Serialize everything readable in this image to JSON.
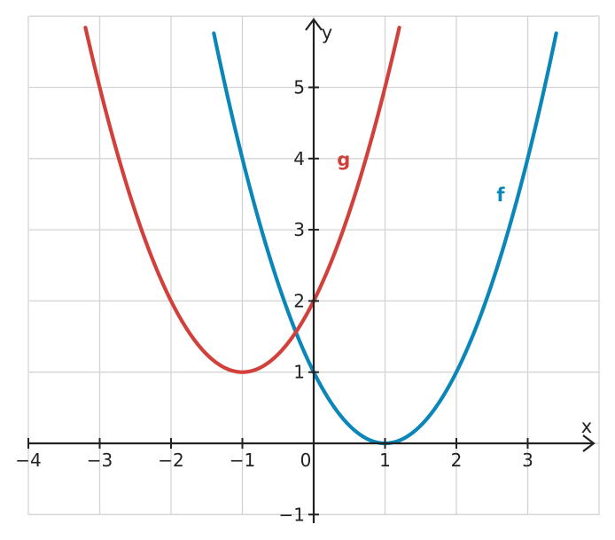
{
  "chart_data": {
    "type": "line",
    "title": "",
    "xlabel": "x",
    "ylabel": "y",
    "xlim": [
      -4,
      4
    ],
    "ylim": [
      -1,
      6
    ],
    "grid": true,
    "x_ticks": [
      -4,
      -3,
      -2,
      -1,
      0,
      1,
      2,
      3
    ],
    "x_tick_labels": [
      "−4",
      "−3",
      "−2",
      "−1",
      "0",
      "1",
      "2",
      "3"
    ],
    "y_ticks": [
      -1,
      1,
      2,
      3,
      4,
      5
    ],
    "y_tick_labels": [
      "−1",
      "1",
      "2",
      "3",
      "4",
      "5"
    ],
    "series": [
      {
        "name": "f",
        "color": "#0a86b8",
        "x": [
          -1.4,
          -1.0,
          -0.5,
          0.0,
          0.5,
          1.0,
          1.5,
          2.0,
          2.5,
          3.0,
          3.4
        ],
        "y": [
          5.76,
          4.0,
          2.25,
          1.0,
          0.25,
          0.0,
          0.25,
          1.0,
          2.25,
          4.0,
          5.76
        ]
      },
      {
        "name": "g",
        "color": "#d1403a",
        "x": [
          -3.2,
          -3.0,
          -2.5,
          -2.0,
          -1.5,
          -1.0,
          -0.5,
          0.0,
          0.5,
          1.0,
          1.2
        ],
        "y": [
          5.84,
          5.0,
          3.25,
          2.0,
          1.25,
          1.0,
          1.25,
          2.0,
          3.25,
          5.0,
          5.84
        ]
      }
    ],
    "annotations": [
      {
        "text": "g",
        "x": 0.42,
        "y": 4.0,
        "color": "#d1403a"
      },
      {
        "text": "f",
        "x": 2.62,
        "y": 3.5,
        "color": "#0a86b8"
      }
    ]
  }
}
